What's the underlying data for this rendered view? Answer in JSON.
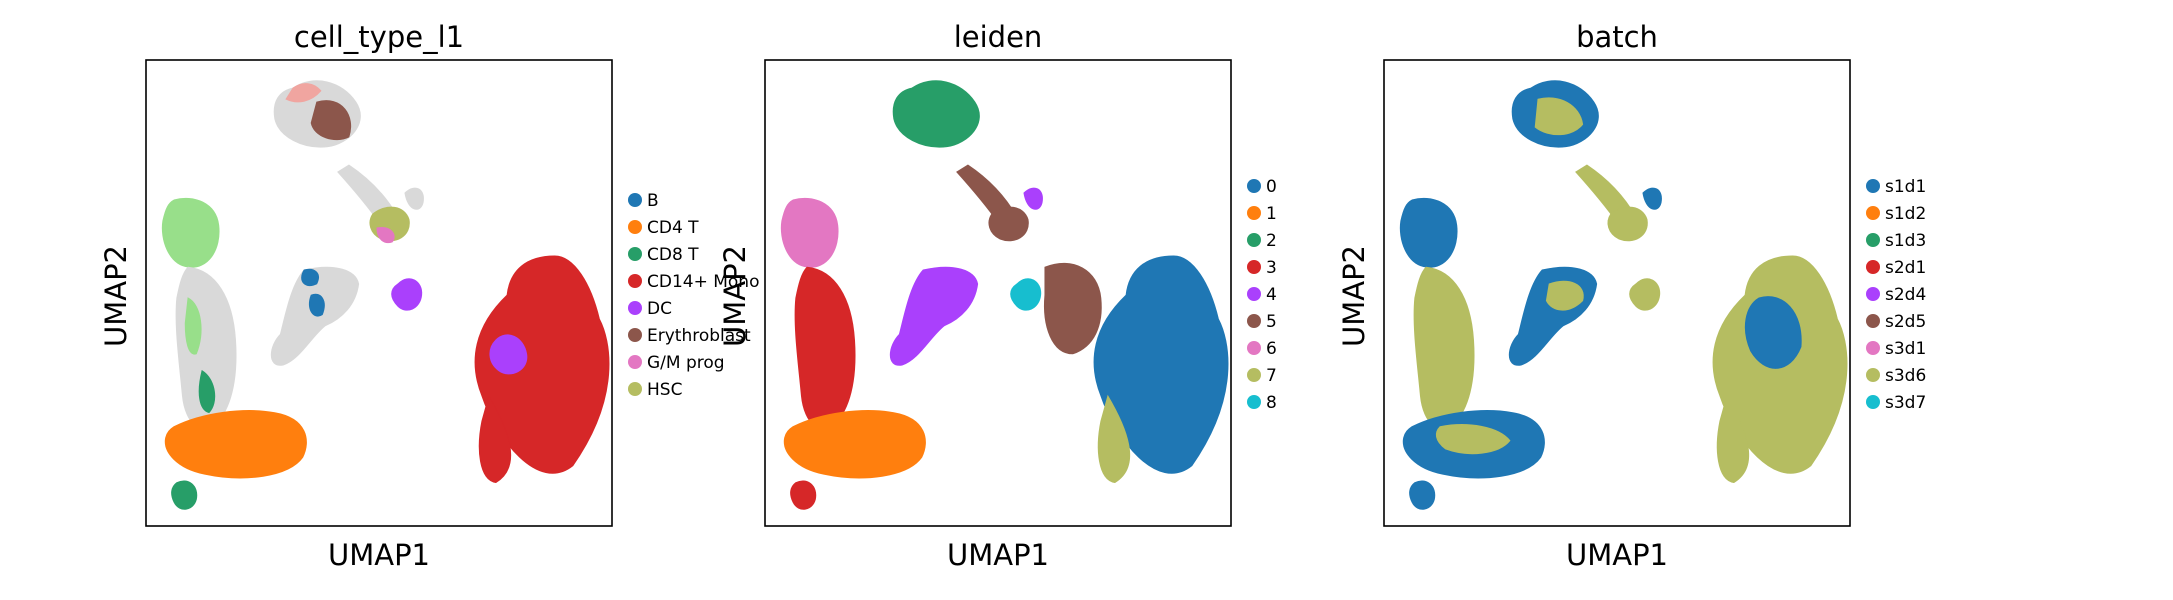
{
  "chart_data": [
    {
      "type": "scatter",
      "title": "cell_type_l1",
      "xlabel": "UMAP1",
      "ylabel": "UMAP2",
      "ticks": false,
      "legend_position": "right",
      "legend": [
        {
          "label": "B",
          "color": "#1f77b4"
        },
        {
          "label": "CD4 T",
          "color": "#ff7f0e"
        },
        {
          "label": "CD8 T",
          "color": "#279e68"
        },
        {
          "label": "CD14+ Mono",
          "color": "#d62728"
        },
        {
          "label": "DC",
          "color": "#aa40fc"
        },
        {
          "label": "Erythroblast",
          "color": "#8c564b"
        },
        {
          "label": "G/M prog",
          "color": "#e377c2"
        },
        {
          "label": "HSC",
          "color": "#b5bd61"
        }
      ]
    },
    {
      "type": "scatter",
      "title": "leiden",
      "xlabel": "UMAP1",
      "ylabel": "UMAP2",
      "ticks": false,
      "legend_position": "right",
      "legend": [
        {
          "label": "0",
          "color": "#1f77b4"
        },
        {
          "label": "1",
          "color": "#ff7f0e"
        },
        {
          "label": "2",
          "color": "#279e68"
        },
        {
          "label": "3",
          "color": "#d62728"
        },
        {
          "label": "4",
          "color": "#aa40fc"
        },
        {
          "label": "5",
          "color": "#8c564b"
        },
        {
          "label": "6",
          "color": "#e377c2"
        },
        {
          "label": "7",
          "color": "#b5bd61"
        },
        {
          "label": "8",
          "color": "#17becf"
        }
      ]
    },
    {
      "type": "scatter",
      "title": "batch",
      "xlabel": "UMAP1",
      "ylabel": "UMAP2",
      "ticks": false,
      "legend_position": "right",
      "legend": [
        {
          "label": "s1d1",
          "color": "#1f77b4"
        },
        {
          "label": "s1d2",
          "color": "#ff7f0e"
        },
        {
          "label": "s1d3",
          "color": "#279e68"
        },
        {
          "label": "s2d1",
          "color": "#d62728"
        },
        {
          "label": "s2d4",
          "color": "#aa40fc"
        },
        {
          "label": "s2d5",
          "color": "#8c564b"
        },
        {
          "label": "s3d1",
          "color": "#e377c2"
        },
        {
          "label": "s3d6",
          "color": "#b5bd61"
        },
        {
          "label": "s3d7",
          "color": "#17becf"
        }
      ]
    }
  ]
}
